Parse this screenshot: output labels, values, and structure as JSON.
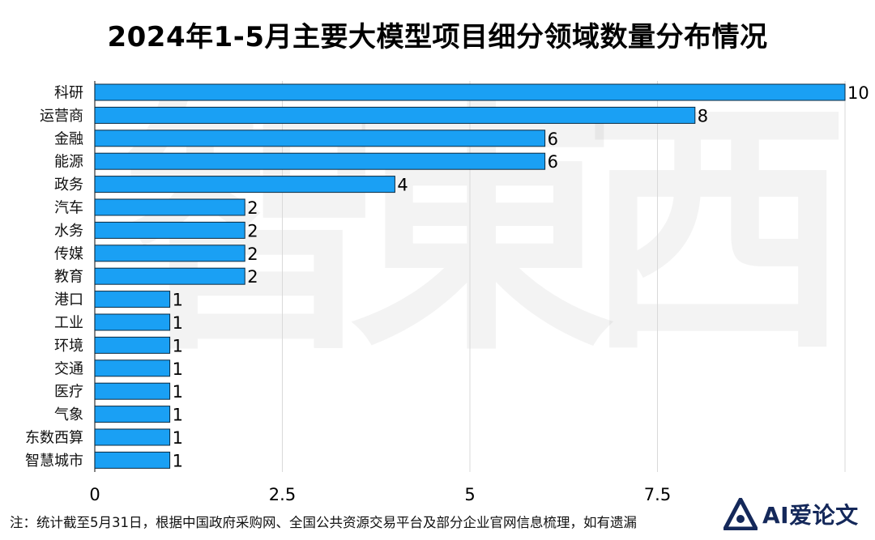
{
  "chart_data": {
    "type": "bar",
    "orientation": "horizontal",
    "title": "2024年1-5月主要大模型项目细分领域数量分布情况",
    "categories": [
      "科研",
      "运营商",
      "金融",
      "能源",
      "政务",
      "汽车",
      "水务",
      "传媒",
      "教育",
      "港口",
      "工业",
      "环境",
      "交通",
      "医疗",
      "气象",
      "东数西算",
      "智慧城市"
    ],
    "values": [
      10,
      8,
      6,
      6,
      4,
      2,
      2,
      2,
      2,
      1,
      1,
      1,
      1,
      1,
      1,
      1,
      1
    ],
    "x_ticks": [
      0,
      2.5,
      5,
      7.5
    ],
    "xlim": [
      0,
      10
    ],
    "grid": "vertical",
    "bar_color": "#1aa0f4",
    "bar_edge_color": "#0b2a40"
  },
  "footnote": "注：统计截至5月31日，根据中国政府采购网、全国公共资源交易平台及部分企业官网信息梳理，如有遗漏",
  "brand": {
    "name": "AI爱论文",
    "color": "#14285a"
  },
  "watermark": {
    "chars": [
      "智",
      "東",
      "西"
    ]
  }
}
